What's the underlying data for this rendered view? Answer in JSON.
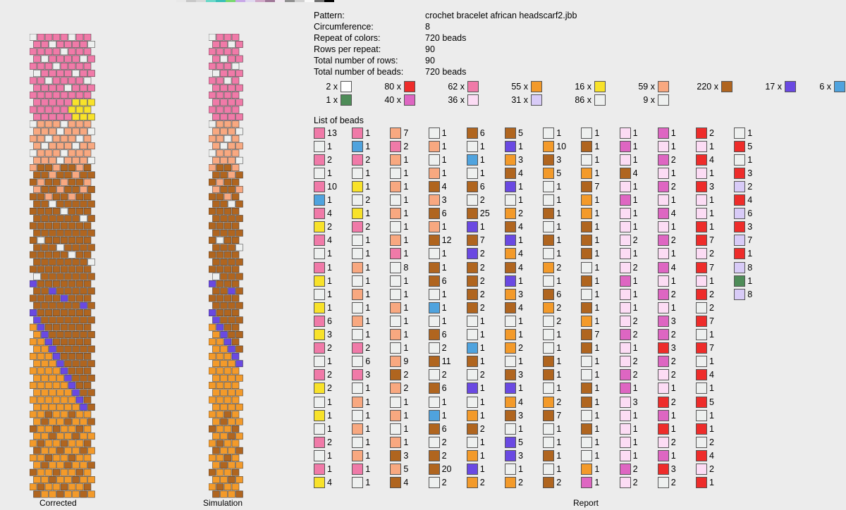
{
  "colors": {
    "pink": "#f07aa8",
    "blue": "#4fa3de",
    "yellow": "#f8e22a",
    "white": "#ffffff",
    "brown": "#b0651f",
    "lightgray": "#eef0ef",
    "salmon": "#f8a880",
    "orange": "#f39a2a",
    "purple": "#6a49e2",
    "red": "#ee2c2a",
    "lightpink": "#fcdcf4",
    "magenta": "#de66c2",
    "lavender": "#d8cbf7",
    "green": "#4e8c58",
    "border": "#555555"
  },
  "top_strip": [
    "#e8e8e8",
    "#c8c8c8",
    "#d8d8d8",
    "#6ad8c8",
    "#3ac0b8",
    "#7ad870",
    "#c8a8e8",
    "#e0d8f0",
    "#d0a8c8",
    "#a07898",
    "#f0e8f0",
    "#909090",
    "#d0d0d0",
    "#f8f8f8",
    "#707070",
    "#000000"
  ],
  "panels": {
    "corrected_label": "Corrected",
    "simulation_label": "Simulation",
    "report_label": "Report"
  },
  "info": [
    {
      "key": "Pattern:",
      "value": "crochet bracelet african headscarf2.jbb"
    },
    {
      "key": "Circumference:",
      "value": "8"
    },
    {
      "key": "Repeat of colors:",
      "value": "720 beads"
    },
    {
      "key": "Rows per repeat:",
      "value": "90"
    },
    {
      "key": "Total number of rows:",
      "value": "90"
    },
    {
      "key": "Total number of beads:",
      "value": "720 beads"
    }
  ],
  "color_counts": [
    {
      "count": "2 x",
      "color": "white"
    },
    {
      "count": "80 x",
      "color": "red"
    },
    {
      "count": "62 x",
      "color": "pink"
    },
    {
      "count": "55 x",
      "color": "orange"
    },
    {
      "count": "16 x",
      "color": "yellow"
    },
    {
      "count": "59 x",
      "color": "salmon"
    },
    {
      "count": "220 x",
      "color": "brown"
    },
    {
      "count": "17 x",
      "color": "purple"
    },
    {
      "count": "6 x",
      "color": "blue"
    },
    {
      "count": "1 x",
      "color": "green"
    },
    {
      "count": "40 x",
      "color": "magenta"
    },
    {
      "count": "36 x",
      "color": "lightpink"
    },
    {
      "count": "31 x",
      "color": "lavender"
    },
    {
      "count": "86 x",
      "color": "lightgray"
    },
    {
      "count": "9 x",
      "color": "lightgray"
    }
  ],
  "list_title": "List of beads",
  "beads": [
    [
      [
        "pink",
        "13"
      ],
      [
        "lightgray",
        "1"
      ],
      [
        "pink",
        "2"
      ],
      [
        "lightgray",
        "1"
      ],
      [
        "pink",
        "10"
      ],
      [
        "blue",
        "1"
      ],
      [
        "pink",
        "4"
      ],
      [
        "yellow",
        "2"
      ],
      [
        "pink",
        "4"
      ],
      [
        "lightgray",
        "1"
      ],
      [
        "pink",
        "1"
      ],
      [
        "yellow",
        "1"
      ],
      [
        "lightgray",
        "1"
      ],
      [
        "yellow",
        "1"
      ],
      [
        "pink",
        "6"
      ],
      [
        "yellow",
        "3"
      ],
      [
        "pink",
        "2"
      ],
      [
        "lightgray",
        "1"
      ],
      [
        "pink",
        "2"
      ],
      [
        "yellow",
        "2"
      ],
      [
        "lightgray",
        "1"
      ],
      [
        "yellow",
        "1"
      ],
      [
        "lightgray",
        "1"
      ],
      [
        "pink",
        "2"
      ],
      [
        "lightgray",
        "1"
      ],
      [
        "pink",
        "1"
      ],
      [
        "yellow",
        "4"
      ]
    ],
    [
      [
        "pink",
        "1"
      ],
      [
        "blue",
        "1"
      ],
      [
        "pink",
        "2"
      ],
      [
        "lightgray",
        "1"
      ],
      [
        "yellow",
        "1"
      ],
      [
        "lightgray",
        "2"
      ],
      [
        "yellow",
        "1"
      ],
      [
        "pink",
        "2"
      ],
      [
        "lightgray",
        "1"
      ],
      [
        "lightgray",
        "1"
      ],
      [
        "salmon",
        "1"
      ],
      [
        "lightgray",
        "1"
      ],
      [
        "salmon",
        "1"
      ],
      [
        "lightgray",
        "1"
      ],
      [
        "salmon",
        "1"
      ],
      [
        "lightgray",
        "1"
      ],
      [
        "pink",
        "2"
      ],
      [
        "lightgray",
        "6"
      ],
      [
        "pink",
        "3"
      ],
      [
        "lightgray",
        "1"
      ],
      [
        "salmon",
        "1"
      ],
      [
        "lightgray",
        "1"
      ],
      [
        "salmon",
        "1"
      ],
      [
        "lightgray",
        "1"
      ],
      [
        "salmon",
        "1"
      ],
      [
        "pink",
        "1"
      ],
      [
        "lightgray",
        "1"
      ]
    ],
    [
      [
        "salmon",
        "7"
      ],
      [
        "pink",
        "2"
      ],
      [
        "salmon",
        "1"
      ],
      [
        "lightgray",
        "1"
      ],
      [
        "salmon",
        "1"
      ],
      [
        "lightgray",
        "1"
      ],
      [
        "salmon",
        "1"
      ],
      [
        "lightgray",
        "1"
      ],
      [
        "salmon",
        "1"
      ],
      [
        "pink",
        "1"
      ],
      [
        "lightgray",
        "8"
      ],
      [
        "lightgray",
        "1"
      ],
      [
        "lightgray",
        "1"
      ],
      [
        "salmon",
        "1"
      ],
      [
        "lightgray",
        "1"
      ],
      [
        "salmon",
        "1"
      ],
      [
        "lightgray",
        "1"
      ],
      [
        "salmon",
        "9"
      ],
      [
        "brown",
        "2"
      ],
      [
        "salmon",
        "2"
      ],
      [
        "lightgray",
        "1"
      ],
      [
        "salmon",
        "1"
      ],
      [
        "lightgray",
        "1"
      ],
      [
        "salmon",
        "1"
      ],
      [
        "brown",
        "3"
      ],
      [
        "salmon",
        "5"
      ],
      [
        "brown",
        "4"
      ]
    ],
    [
      [
        "lightgray",
        "1"
      ],
      [
        "salmon",
        "1"
      ],
      [
        "lightgray",
        "1"
      ],
      [
        "salmon",
        "1"
      ],
      [
        "brown",
        "4"
      ],
      [
        "salmon",
        "3"
      ],
      [
        "brown",
        "6"
      ],
      [
        "salmon",
        "1"
      ],
      [
        "brown",
        "12"
      ],
      [
        "lightgray",
        "1"
      ],
      [
        "brown",
        "1"
      ],
      [
        "brown",
        "6"
      ],
      [
        "lightgray",
        "1"
      ],
      [
        "blue",
        "1"
      ],
      [
        "lightgray",
        "1"
      ],
      [
        "brown",
        "6"
      ],
      [
        "lightgray",
        "2"
      ],
      [
        "brown",
        "11"
      ],
      [
        "lightgray",
        "2"
      ],
      [
        "brown",
        "6"
      ],
      [
        "lightgray",
        "1"
      ],
      [
        "blue",
        "1"
      ],
      [
        "brown",
        "6"
      ],
      [
        "lightgray",
        "2"
      ],
      [
        "brown",
        "2"
      ],
      [
        "brown",
        "20"
      ],
      [
        "lightgray",
        "2"
      ]
    ],
    [
      [
        "brown",
        "6"
      ],
      [
        "lightgray",
        "1"
      ],
      [
        "blue",
        "1"
      ],
      [
        "lightgray",
        "1"
      ],
      [
        "brown",
        "6"
      ],
      [
        "lightgray",
        "2"
      ],
      [
        "brown",
        "25"
      ],
      [
        "purple",
        "1"
      ],
      [
        "brown",
        "7"
      ],
      [
        "purple",
        "2"
      ],
      [
        "brown",
        "2"
      ],
      [
        "brown",
        "2"
      ],
      [
        "brown",
        "2"
      ],
      [
        "brown",
        "2"
      ],
      [
        "lightgray",
        "1"
      ],
      [
        "lightgray",
        "1"
      ],
      [
        "blue",
        "1"
      ],
      [
        "brown",
        "1"
      ],
      [
        "lightgray",
        "2"
      ],
      [
        "purple",
        "1"
      ],
      [
        "lightgray",
        "1"
      ],
      [
        "orange",
        "1"
      ],
      [
        "brown",
        "2"
      ],
      [
        "lightgray",
        "1"
      ],
      [
        "orange",
        "1"
      ],
      [
        "purple",
        "1"
      ],
      [
        "orange",
        "2"
      ]
    ],
    [
      [
        "brown",
        "5"
      ],
      [
        "purple",
        "1"
      ],
      [
        "orange",
        "3"
      ],
      [
        "brown",
        "4"
      ],
      [
        "purple",
        "1"
      ],
      [
        "lightgray",
        "1"
      ],
      [
        "orange",
        "2"
      ],
      [
        "brown",
        "4"
      ],
      [
        "purple",
        "1"
      ],
      [
        "orange",
        "4"
      ],
      [
        "brown",
        "4"
      ],
      [
        "purple",
        "1"
      ],
      [
        "orange",
        "3"
      ],
      [
        "brown",
        "4"
      ],
      [
        "lightgray",
        "1"
      ],
      [
        "orange",
        "1"
      ],
      [
        "orange",
        "2"
      ],
      [
        "lightgray",
        "1"
      ],
      [
        "brown",
        "3"
      ],
      [
        "purple",
        "1"
      ],
      [
        "orange",
        "4"
      ],
      [
        "brown",
        "3"
      ],
      [
        "lightgray",
        "1"
      ],
      [
        "purple",
        "5"
      ],
      [
        "purple",
        "3"
      ],
      [
        "lightgray",
        "1"
      ],
      [
        "orange",
        "2"
      ]
    ],
    [
      [
        "lightgray",
        "1"
      ],
      [
        "orange",
        "10"
      ],
      [
        "brown",
        "3"
      ],
      [
        "orange",
        "5"
      ],
      [
        "lightgray",
        "1"
      ],
      [
        "lightgray",
        "1"
      ],
      [
        "brown",
        "1"
      ],
      [
        "lightgray",
        "1"
      ],
      [
        "brown",
        "1"
      ],
      [
        "lightgray",
        "1"
      ],
      [
        "orange",
        "2"
      ],
      [
        "lightgray",
        "1"
      ],
      [
        "brown",
        "6"
      ],
      [
        "orange",
        "2"
      ],
      [
        "lightgray",
        "2"
      ],
      [
        "lightgray",
        "1"
      ],
      [
        "lightgray",
        "1"
      ],
      [
        "brown",
        "1"
      ],
      [
        "brown",
        "1"
      ],
      [
        "lightgray",
        "1"
      ],
      [
        "orange",
        "2"
      ],
      [
        "brown",
        "7"
      ],
      [
        "lightgray",
        "1"
      ],
      [
        "lightgray",
        "1"
      ],
      [
        "brown",
        "1"
      ],
      [
        "lightgray",
        "1"
      ],
      [
        "brown",
        "2"
      ]
    ],
    [
      [
        "lightgray",
        "1"
      ],
      [
        "brown",
        "1"
      ],
      [
        "lightgray",
        "1"
      ],
      [
        "orange",
        "1"
      ],
      [
        "brown",
        "7"
      ],
      [
        "orange",
        "1"
      ],
      [
        "orange",
        "1"
      ],
      [
        "brown",
        "1"
      ],
      [
        "brown",
        "1"
      ],
      [
        "brown",
        "1"
      ],
      [
        "lightgray",
        "1"
      ],
      [
        "brown",
        "1"
      ],
      [
        "lightgray",
        "1"
      ],
      [
        "brown",
        "1"
      ],
      [
        "orange",
        "1"
      ],
      [
        "brown",
        "7"
      ],
      [
        "brown",
        "1"
      ],
      [
        "lightgray",
        "1"
      ],
      [
        "lightgray",
        "1"
      ],
      [
        "brown",
        "1"
      ],
      [
        "brown",
        "1"
      ],
      [
        "lightgray",
        "1"
      ],
      [
        "brown",
        "1"
      ],
      [
        "lightgray",
        "1"
      ],
      [
        "lightgray",
        "1"
      ],
      [
        "orange",
        "1"
      ],
      [
        "magenta",
        "1"
      ]
    ],
    [
      [
        "lightpink",
        "1"
      ],
      [
        "magenta",
        "1"
      ],
      [
        "lightpink",
        "1"
      ],
      [
        "brown",
        "4"
      ],
      [
        "lightpink",
        "1"
      ],
      [
        "magenta",
        "1"
      ],
      [
        "lightpink",
        "1"
      ],
      [
        "lightpink",
        "1"
      ],
      [
        "lightpink",
        "2"
      ],
      [
        "lightpink",
        "1"
      ],
      [
        "lightpink",
        "2"
      ],
      [
        "magenta",
        "1"
      ],
      [
        "lightpink",
        "1"
      ],
      [
        "lightpink",
        "1"
      ],
      [
        "lightpink",
        "2"
      ],
      [
        "magenta",
        "2"
      ],
      [
        "lightpink",
        "1"
      ],
      [
        "lightpink",
        "2"
      ],
      [
        "magenta",
        "2"
      ],
      [
        "magenta",
        "1"
      ],
      [
        "lightpink",
        "3"
      ],
      [
        "lightpink",
        "1"
      ],
      [
        "lightpink",
        "1"
      ],
      [
        "lightpink",
        "1"
      ],
      [
        "lightpink",
        "1"
      ],
      [
        "magenta",
        "2"
      ],
      [
        "lightpink",
        "2"
      ]
    ],
    [
      [
        "magenta",
        "1"
      ],
      [
        "lightpink",
        "1"
      ],
      [
        "magenta",
        "2"
      ],
      [
        "lightpink",
        "1"
      ],
      [
        "magenta",
        "2"
      ],
      [
        "lightpink",
        "1"
      ],
      [
        "magenta",
        "4"
      ],
      [
        "lightpink",
        "1"
      ],
      [
        "magenta",
        "2"
      ],
      [
        "lightpink",
        "1"
      ],
      [
        "magenta",
        "4"
      ],
      [
        "lightpink",
        "1"
      ],
      [
        "magenta",
        "2"
      ],
      [
        "lightpink",
        "1"
      ],
      [
        "magenta",
        "3"
      ],
      [
        "magenta",
        "2"
      ],
      [
        "red",
        "3"
      ],
      [
        "magenta",
        "2"
      ],
      [
        "lightpink",
        "2"
      ],
      [
        "lightpink",
        "1"
      ],
      [
        "red",
        "2"
      ],
      [
        "magenta",
        "1"
      ],
      [
        "red",
        "1"
      ],
      [
        "lightpink",
        "2"
      ],
      [
        "magenta",
        "1"
      ],
      [
        "red",
        "3"
      ],
      [
        "lightgray",
        "2"
      ]
    ],
    [
      [
        "red",
        "2"
      ],
      [
        "lightpink",
        "1"
      ],
      [
        "red",
        "4"
      ],
      [
        "lightpink",
        "1"
      ],
      [
        "red",
        "3"
      ],
      [
        "lightpink",
        "1"
      ],
      [
        "lightpink",
        "1"
      ],
      [
        "red",
        "1"
      ],
      [
        "red",
        "7"
      ],
      [
        "lightpink",
        "2"
      ],
      [
        "red",
        "7"
      ],
      [
        "lightpink",
        "1"
      ],
      [
        "red",
        "2"
      ],
      [
        "lightgray",
        "2"
      ],
      [
        "red",
        "7"
      ],
      [
        "lightgray",
        "1"
      ],
      [
        "red",
        "7"
      ],
      [
        "lightgray",
        "1"
      ],
      [
        "red",
        "4"
      ],
      [
        "lightgray",
        "1"
      ],
      [
        "red",
        "5"
      ],
      [
        "lightgray",
        "1"
      ],
      [
        "red",
        "1"
      ],
      [
        "lightgray",
        "2"
      ],
      [
        "red",
        "4"
      ],
      [
        "lightpink",
        "2"
      ],
      [
        "red",
        "1"
      ]
    ],
    [
      [
        "lightgray",
        "1"
      ],
      [
        "red",
        "5"
      ],
      [
        "lightgray",
        "1"
      ],
      [
        "red",
        "3"
      ],
      [
        "lavender",
        "2"
      ],
      [
        "red",
        "4"
      ],
      [
        "lavender",
        "6"
      ],
      [
        "red",
        "3"
      ],
      [
        "lavender",
        "7"
      ],
      [
        "red",
        "1"
      ],
      [
        "lavender",
        "8"
      ],
      [
        "green",
        "1"
      ],
      [
        "lavender",
        "8"
      ]
    ]
  ]
}
